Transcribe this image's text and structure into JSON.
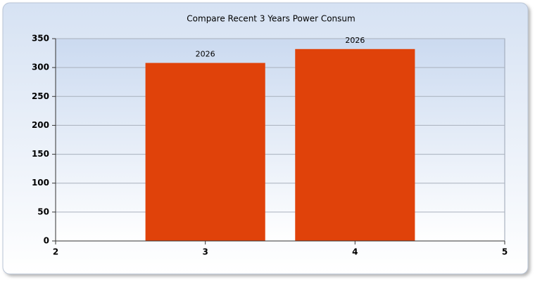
{
  "chart_data": {
    "type": "bar",
    "title": "Compare Recent 3 Years Power Consum",
    "x": [
      3,
      4
    ],
    "values": [
      308,
      332
    ],
    "bar_labels": [
      "2026",
      "2026"
    ],
    "color": "#e0420a",
    "xlim": [
      2,
      5
    ],
    "xticks": [
      2,
      3,
      4,
      5
    ],
    "ylim": [
      0,
      350
    ],
    "yticks": [
      0,
      50,
      100,
      150,
      200,
      250,
      300,
      350
    ],
    "grid": true
  }
}
